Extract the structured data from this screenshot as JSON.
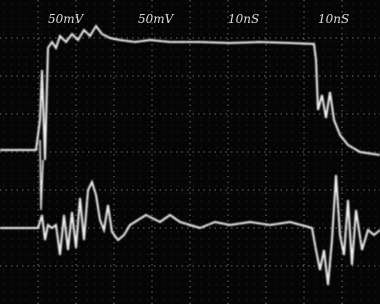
{
  "scope": {
    "labels": [
      "50mV",
      "50mV",
      "10nS",
      "10nS"
    ]
  }
}
